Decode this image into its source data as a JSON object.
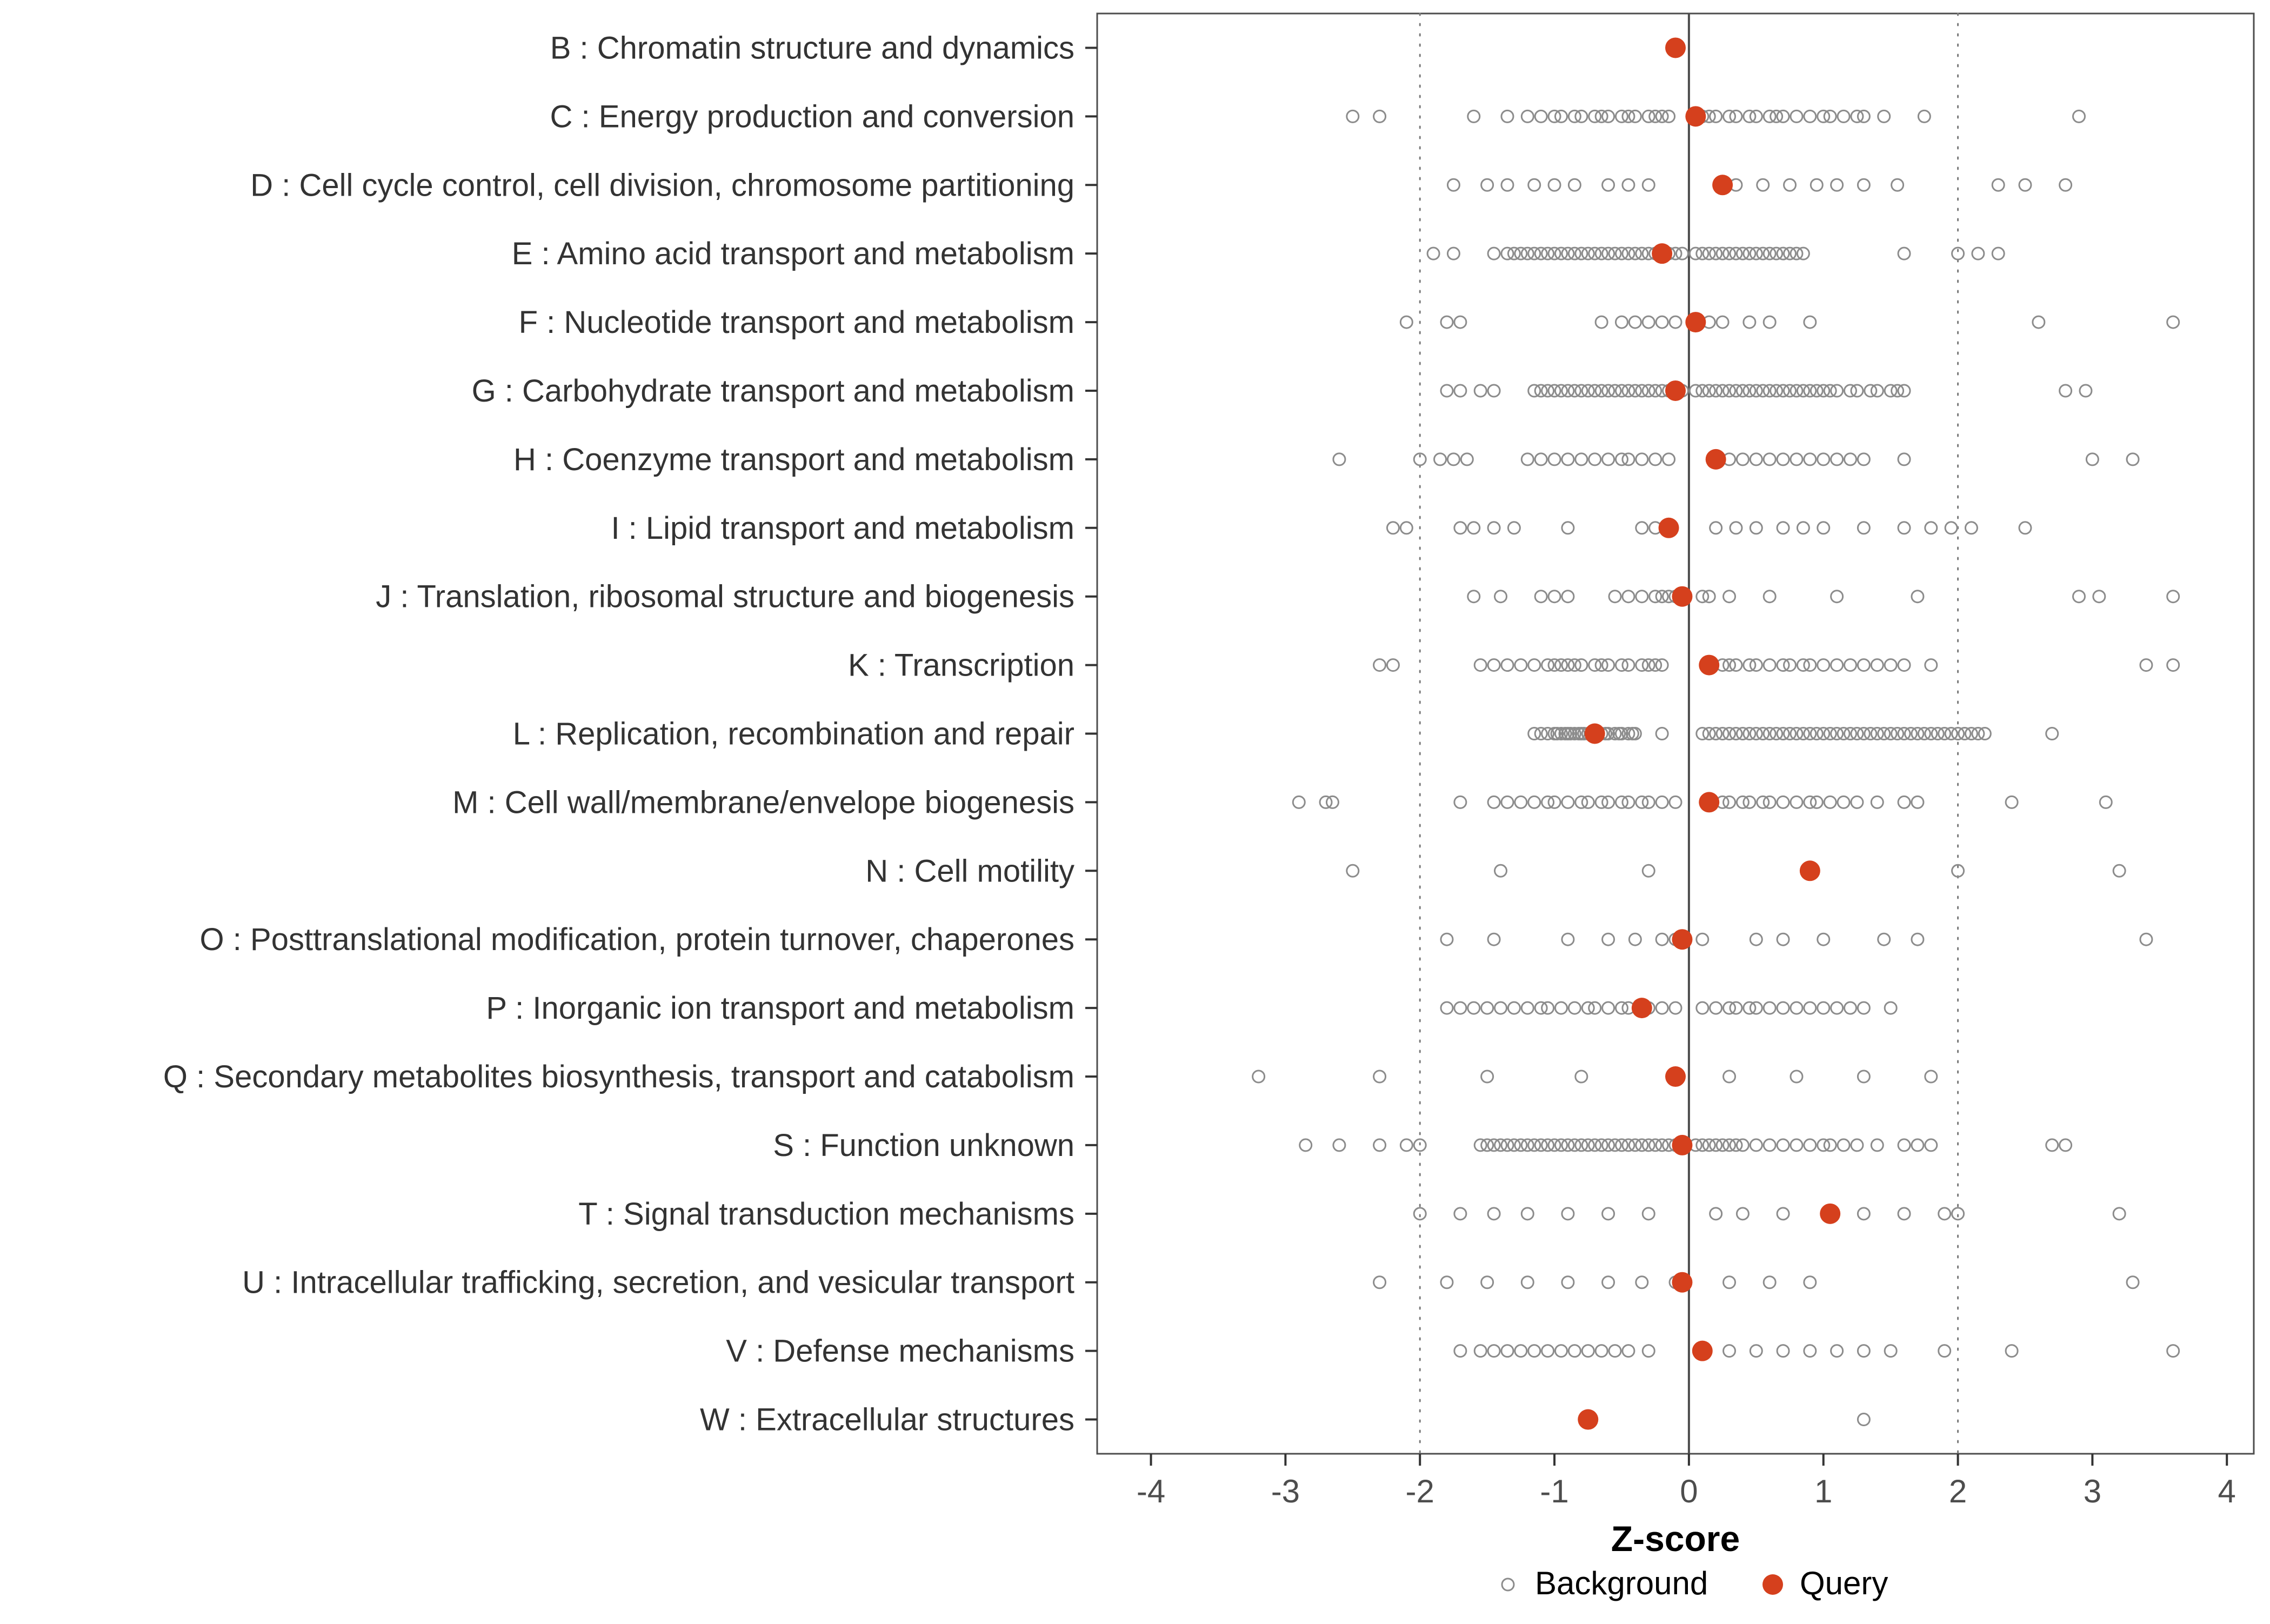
{
  "chart_data": {
    "type": "scatter",
    "title": "",
    "xlabel": "Z-score",
    "ylabel": "",
    "xlim": [
      -4.4,
      4.2
    ],
    "xticks": [
      -4,
      -3,
      -2,
      -1,
      0,
      1,
      2,
      3,
      4
    ],
    "grid": false,
    "reference_lines": {
      "solid": [
        0
      ],
      "dotted": [
        -2,
        2
      ]
    },
    "legend_position": "bottom",
    "legend": [
      {
        "label": "Background",
        "marker": "open-circle"
      },
      {
        "label": "Query",
        "marker": "filled-circle"
      }
    ],
    "colors": {
      "background_point_stroke": "#8c8c8c",
      "query_point_fill": "#d5401d",
      "panel_border": "#4d4d4d",
      "zero_line": "#4d4d4d",
      "dotted_line": "#7a7a7a",
      "tick_label": "#4d4d4d",
      "category_label": "#333333",
      "axis_title": "#000000"
    },
    "categories": [
      {
        "label": "B : Chromatin structure and dynamics",
        "query": -0.1,
        "background": []
      },
      {
        "label": "C : Energy production and conversion",
        "query": 0.05,
        "background": [
          -2.5,
          -2.3,
          -1.6,
          -1.35,
          -1.2,
          -1.1,
          -1.0,
          -0.95,
          -0.85,
          -0.8,
          -0.7,
          -0.65,
          -0.6,
          -0.5,
          -0.45,
          -0.4,
          -0.3,
          -0.25,
          -0.2,
          -0.15,
          0.1,
          0.15,
          0.2,
          0.3,
          0.35,
          0.45,
          0.5,
          0.6,
          0.65,
          0.7,
          0.8,
          0.9,
          1.0,
          1.05,
          1.15,
          1.25,
          1.3,
          1.45,
          1.75,
          2.9
        ]
      },
      {
        "label": "D : Cell cycle control, cell division, chromosome partitioning",
        "query": 0.25,
        "background": [
          -1.75,
          -1.5,
          -1.35,
          -1.15,
          -1.0,
          -0.85,
          -0.6,
          -0.45,
          -0.3,
          0.35,
          0.55,
          0.75,
          0.95,
          1.1,
          1.3,
          1.55,
          2.3,
          2.5,
          2.8
        ]
      },
      {
        "label": "E : Amino acid transport and metabolism",
        "query": -0.2,
        "background": [
          -1.9,
          -1.75,
          -1.45,
          -1.35,
          -1.3,
          -1.25,
          -1.2,
          -1.15,
          -1.1,
          -1.05,
          -1.0,
          -0.95,
          -0.9,
          -0.85,
          -0.8,
          -0.75,
          -0.7,
          -0.65,
          -0.6,
          -0.55,
          -0.5,
          -0.45,
          -0.4,
          -0.35,
          -0.3,
          -0.25,
          -0.15,
          -0.1,
          -0.05,
          0.05,
          0.1,
          0.15,
          0.2,
          0.25,
          0.3,
          0.35,
          0.4,
          0.45,
          0.5,
          0.55,
          0.6,
          0.65,
          0.7,
          0.75,
          0.8,
          0.85,
          1.6,
          2.0,
          2.15,
          2.3
        ]
      },
      {
        "label": "F : Nucleotide transport and metabolism",
        "query": 0.05,
        "background": [
          -2.1,
          -1.8,
          -1.7,
          -0.65,
          -0.5,
          -0.4,
          -0.3,
          -0.2,
          -0.1,
          0.15,
          0.25,
          0.45,
          0.6,
          0.9,
          2.6,
          3.6
        ]
      },
      {
        "label": "G : Carbohydrate transport and metabolism",
        "query": -0.1,
        "background": [
          -1.8,
          -1.7,
          -1.55,
          -1.45,
          -1.15,
          -1.1,
          -1.05,
          -1.0,
          -0.95,
          -0.9,
          -0.85,
          -0.8,
          -0.75,
          -0.7,
          -0.65,
          -0.6,
          -0.55,
          -0.5,
          -0.45,
          -0.4,
          -0.35,
          -0.3,
          -0.25,
          -0.2,
          -0.15,
          -0.05,
          0.05,
          0.1,
          0.15,
          0.2,
          0.25,
          0.3,
          0.35,
          0.4,
          0.45,
          0.5,
          0.55,
          0.6,
          0.65,
          0.7,
          0.75,
          0.8,
          0.85,
          0.9,
          0.95,
          1.0,
          1.05,
          1.1,
          1.2,
          1.25,
          1.35,
          1.4,
          1.5,
          1.55,
          1.6,
          2.8,
          2.95
        ]
      },
      {
        "label": "H : Coenzyme transport and metabolism",
        "query": 0.2,
        "background": [
          -2.6,
          -2.0,
          -1.85,
          -1.75,
          -1.65,
          -1.2,
          -1.1,
          -1.0,
          -0.9,
          -0.8,
          -0.7,
          -0.6,
          -0.5,
          -0.45,
          -0.35,
          -0.25,
          -0.15,
          0.3,
          0.4,
          0.5,
          0.6,
          0.7,
          0.8,
          0.9,
          1.0,
          1.1,
          1.2,
          1.3,
          1.6,
          3.0,
          3.3
        ]
      },
      {
        "label": "I : Lipid transport and metabolism",
        "query": -0.15,
        "background": [
          -2.2,
          -2.1,
          -1.7,
          -1.6,
          -1.45,
          -1.3,
          -0.9,
          -0.35,
          -0.25,
          0.2,
          0.35,
          0.5,
          0.7,
          0.85,
          1.0,
          1.3,
          1.6,
          1.8,
          1.95,
          2.1,
          2.5
        ]
      },
      {
        "label": "J : Translation, ribosomal structure and biogenesis",
        "query": -0.05,
        "background": [
          -1.6,
          -1.4,
          -1.1,
          -1.0,
          -0.9,
          -0.55,
          -0.45,
          -0.35,
          -0.25,
          -0.2,
          -0.15,
          -0.1,
          0.1,
          0.15,
          0.3,
          0.6,
          1.1,
          1.7,
          2.9,
          3.05,
          3.6
        ]
      },
      {
        "label": "K : Transcription",
        "query": 0.15,
        "background": [
          -2.3,
          -2.2,
          -1.55,
          -1.45,
          -1.35,
          -1.25,
          -1.15,
          -1.05,
          -1.0,
          -0.95,
          -0.9,
          -0.85,
          -0.8,
          -0.7,
          -0.65,
          -0.6,
          -0.5,
          -0.45,
          -0.35,
          -0.3,
          -0.25,
          -0.2,
          0.25,
          0.3,
          0.35,
          0.45,
          0.5,
          0.6,
          0.7,
          0.75,
          0.85,
          0.9,
          1.0,
          1.1,
          1.2,
          1.3,
          1.4,
          1.5,
          1.6,
          1.8,
          3.4,
          3.6
        ]
      },
      {
        "label": "L : Replication, recombination and repair",
        "query": -0.7,
        "background": [
          -1.15,
          -1.1,
          -1.05,
          -1.0,
          -0.98,
          -0.95,
          -0.92,
          -0.9,
          -0.88,
          -0.85,
          -0.82,
          -0.8,
          -0.78,
          -0.75,
          -0.72,
          -0.68,
          -0.65,
          -0.62,
          -0.6,
          -0.55,
          -0.52,
          -0.5,
          -0.45,
          -0.42,
          -0.4,
          -0.2,
          0.1,
          0.15,
          0.2,
          0.25,
          0.3,
          0.35,
          0.4,
          0.45,
          0.5,
          0.55,
          0.6,
          0.65,
          0.7,
          0.75,
          0.8,
          0.85,
          0.9,
          0.95,
          1.0,
          1.05,
          1.1,
          1.15,
          1.2,
          1.25,
          1.3,
          1.35,
          1.4,
          1.45,
          1.5,
          1.55,
          1.6,
          1.65,
          1.7,
          1.75,
          1.8,
          1.85,
          1.9,
          1.95,
          2.0,
          2.05,
          2.1,
          2.15,
          2.2,
          2.7
        ]
      },
      {
        "label": "M : Cell wall/membrane/envelope biogenesis",
        "query": 0.15,
        "background": [
          -2.9,
          -2.7,
          -2.65,
          -1.7,
          -1.45,
          -1.35,
          -1.25,
          -1.15,
          -1.05,
          -1.0,
          -0.9,
          -0.8,
          -0.75,
          -0.65,
          -0.6,
          -0.5,
          -0.45,
          -0.35,
          -0.3,
          -0.2,
          -0.1,
          0.25,
          0.3,
          0.4,
          0.45,
          0.55,
          0.6,
          0.7,
          0.8,
          0.9,
          0.95,
          1.05,
          1.15,
          1.25,
          1.4,
          1.6,
          1.7,
          2.4,
          3.1
        ]
      },
      {
        "label": "N : Cell motility",
        "query": 0.9,
        "background": [
          -2.5,
          -1.4,
          -0.3,
          2.0,
          3.2
        ]
      },
      {
        "label": "O : Posttranslational modification, protein turnover, chaperones",
        "query": -0.05,
        "background": [
          -1.8,
          -1.45,
          -0.9,
          -0.6,
          -0.4,
          -0.2,
          -0.1,
          0.1,
          0.5,
          0.7,
          1.0,
          1.45,
          1.7,
          3.4
        ]
      },
      {
        "label": "P : Inorganic ion transport and metabolism",
        "query": -0.35,
        "background": [
          -1.8,
          -1.7,
          -1.6,
          -1.5,
          -1.4,
          -1.3,
          -1.2,
          -1.1,
          -1.05,
          -0.95,
          -0.85,
          -0.75,
          -0.7,
          -0.6,
          -0.5,
          -0.45,
          -0.3,
          -0.2,
          -0.1,
          0.1,
          0.2,
          0.3,
          0.35,
          0.45,
          0.5,
          0.6,
          0.7,
          0.8,
          0.9,
          1.0,
          1.1,
          1.2,
          1.3,
          1.5
        ]
      },
      {
        "label": "Q : Secondary metabolites biosynthesis, transport and catabolism",
        "query": -0.1,
        "background": [
          -3.2,
          -2.3,
          -1.5,
          -0.8,
          0.3,
          0.8,
          1.3,
          1.8
        ]
      },
      {
        "label": "S : Function unknown",
        "query": -0.05,
        "background": [
          -2.85,
          -2.6,
          -2.3,
          -2.1,
          -2.0,
          -1.55,
          -1.5,
          -1.45,
          -1.4,
          -1.35,
          -1.3,
          -1.25,
          -1.2,
          -1.15,
          -1.1,
          -1.05,
          -1.0,
          -0.95,
          -0.9,
          -0.85,
          -0.8,
          -0.75,
          -0.7,
          -0.65,
          -0.6,
          -0.55,
          -0.5,
          -0.45,
          -0.4,
          -0.35,
          -0.3,
          -0.25,
          -0.2,
          -0.15,
          -0.1,
          0.05,
          0.1,
          0.15,
          0.2,
          0.25,
          0.3,
          0.35,
          0.4,
          0.5,
          0.6,
          0.7,
          0.8,
          0.9,
          1.0,
          1.05,
          1.15,
          1.25,
          1.4,
          1.6,
          1.7,
          1.8,
          2.7,
          2.8
        ]
      },
      {
        "label": "T : Signal transduction mechanisms",
        "query": 1.05,
        "background": [
          -2.0,
          -1.7,
          -1.45,
          -1.2,
          -0.9,
          -0.6,
          -0.3,
          0.2,
          0.4,
          0.7,
          1.3,
          1.6,
          1.9,
          2.0,
          3.2
        ]
      },
      {
        "label": "U : Intracellular trafficking, secretion, and vesicular transport",
        "query": -0.05,
        "background": [
          -2.3,
          -1.8,
          -1.5,
          -1.2,
          -0.9,
          -0.6,
          -0.35,
          -0.1,
          0.3,
          0.6,
          0.9,
          3.3
        ]
      },
      {
        "label": "V : Defense mechanisms",
        "query": 0.1,
        "background": [
          -1.7,
          -1.55,
          -1.45,
          -1.35,
          -1.25,
          -1.15,
          -1.05,
          -0.95,
          -0.85,
          -0.75,
          -0.65,
          -0.55,
          -0.45,
          -0.3,
          0.3,
          0.5,
          0.7,
          0.9,
          1.1,
          1.3,
          1.5,
          1.9,
          2.4,
          3.6
        ]
      },
      {
        "label": "W : Extracellular structures",
        "query": -0.75,
        "background": [
          1.3
        ]
      }
    ]
  }
}
